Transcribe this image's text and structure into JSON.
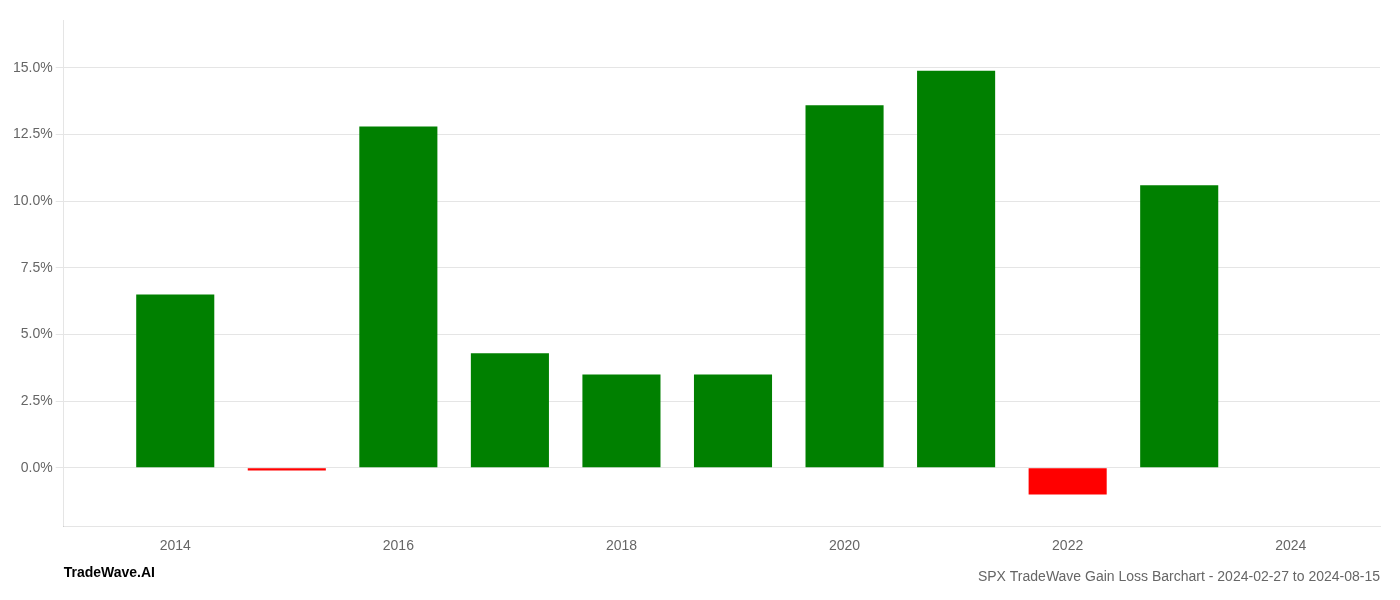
{
  "chart_data": {
    "type": "bar",
    "title": "SPX TradeWave Gain Loss Barchart - 2024-02-27 to 2024-08-15",
    "annotations": [
      "TradeWave.AI"
    ],
    "x": [
      2014,
      2015,
      2016,
      2017,
      2018,
      2019,
      2020,
      2021,
      2022,
      2023
    ],
    "values": [
      0.065,
      -0.001,
      0.128,
      0.043,
      0.035,
      0.035,
      0.136,
      0.149,
      -0.01,
      0.106
    ],
    "colors": [
      "#008000",
      "#ff0000",
      "#008000",
      "#008000",
      "#008000",
      "#008000",
      "#008000",
      "#008000",
      "#ff0000",
      "#008000"
    ],
    "xlim": [
      2013.0,
      2024.8
    ],
    "xticks": [
      2014,
      2016,
      2018,
      2020,
      2022,
      2024
    ],
    "ylim": [
      -0.022,
      0.168
    ],
    "yticks": [
      {
        "value": 0.0,
        "label": "0.0%"
      },
      {
        "value": 0.025,
        "label": "2.5%"
      },
      {
        "value": 0.05,
        "label": "5.0%"
      },
      {
        "value": 0.075,
        "label": "7.5%"
      },
      {
        "value": 0.1,
        "label": "10.0%"
      },
      {
        "value": 0.125,
        "label": "12.5%"
      },
      {
        "value": 0.15,
        "label": "15.0%"
      }
    ],
    "grid": "y"
  }
}
